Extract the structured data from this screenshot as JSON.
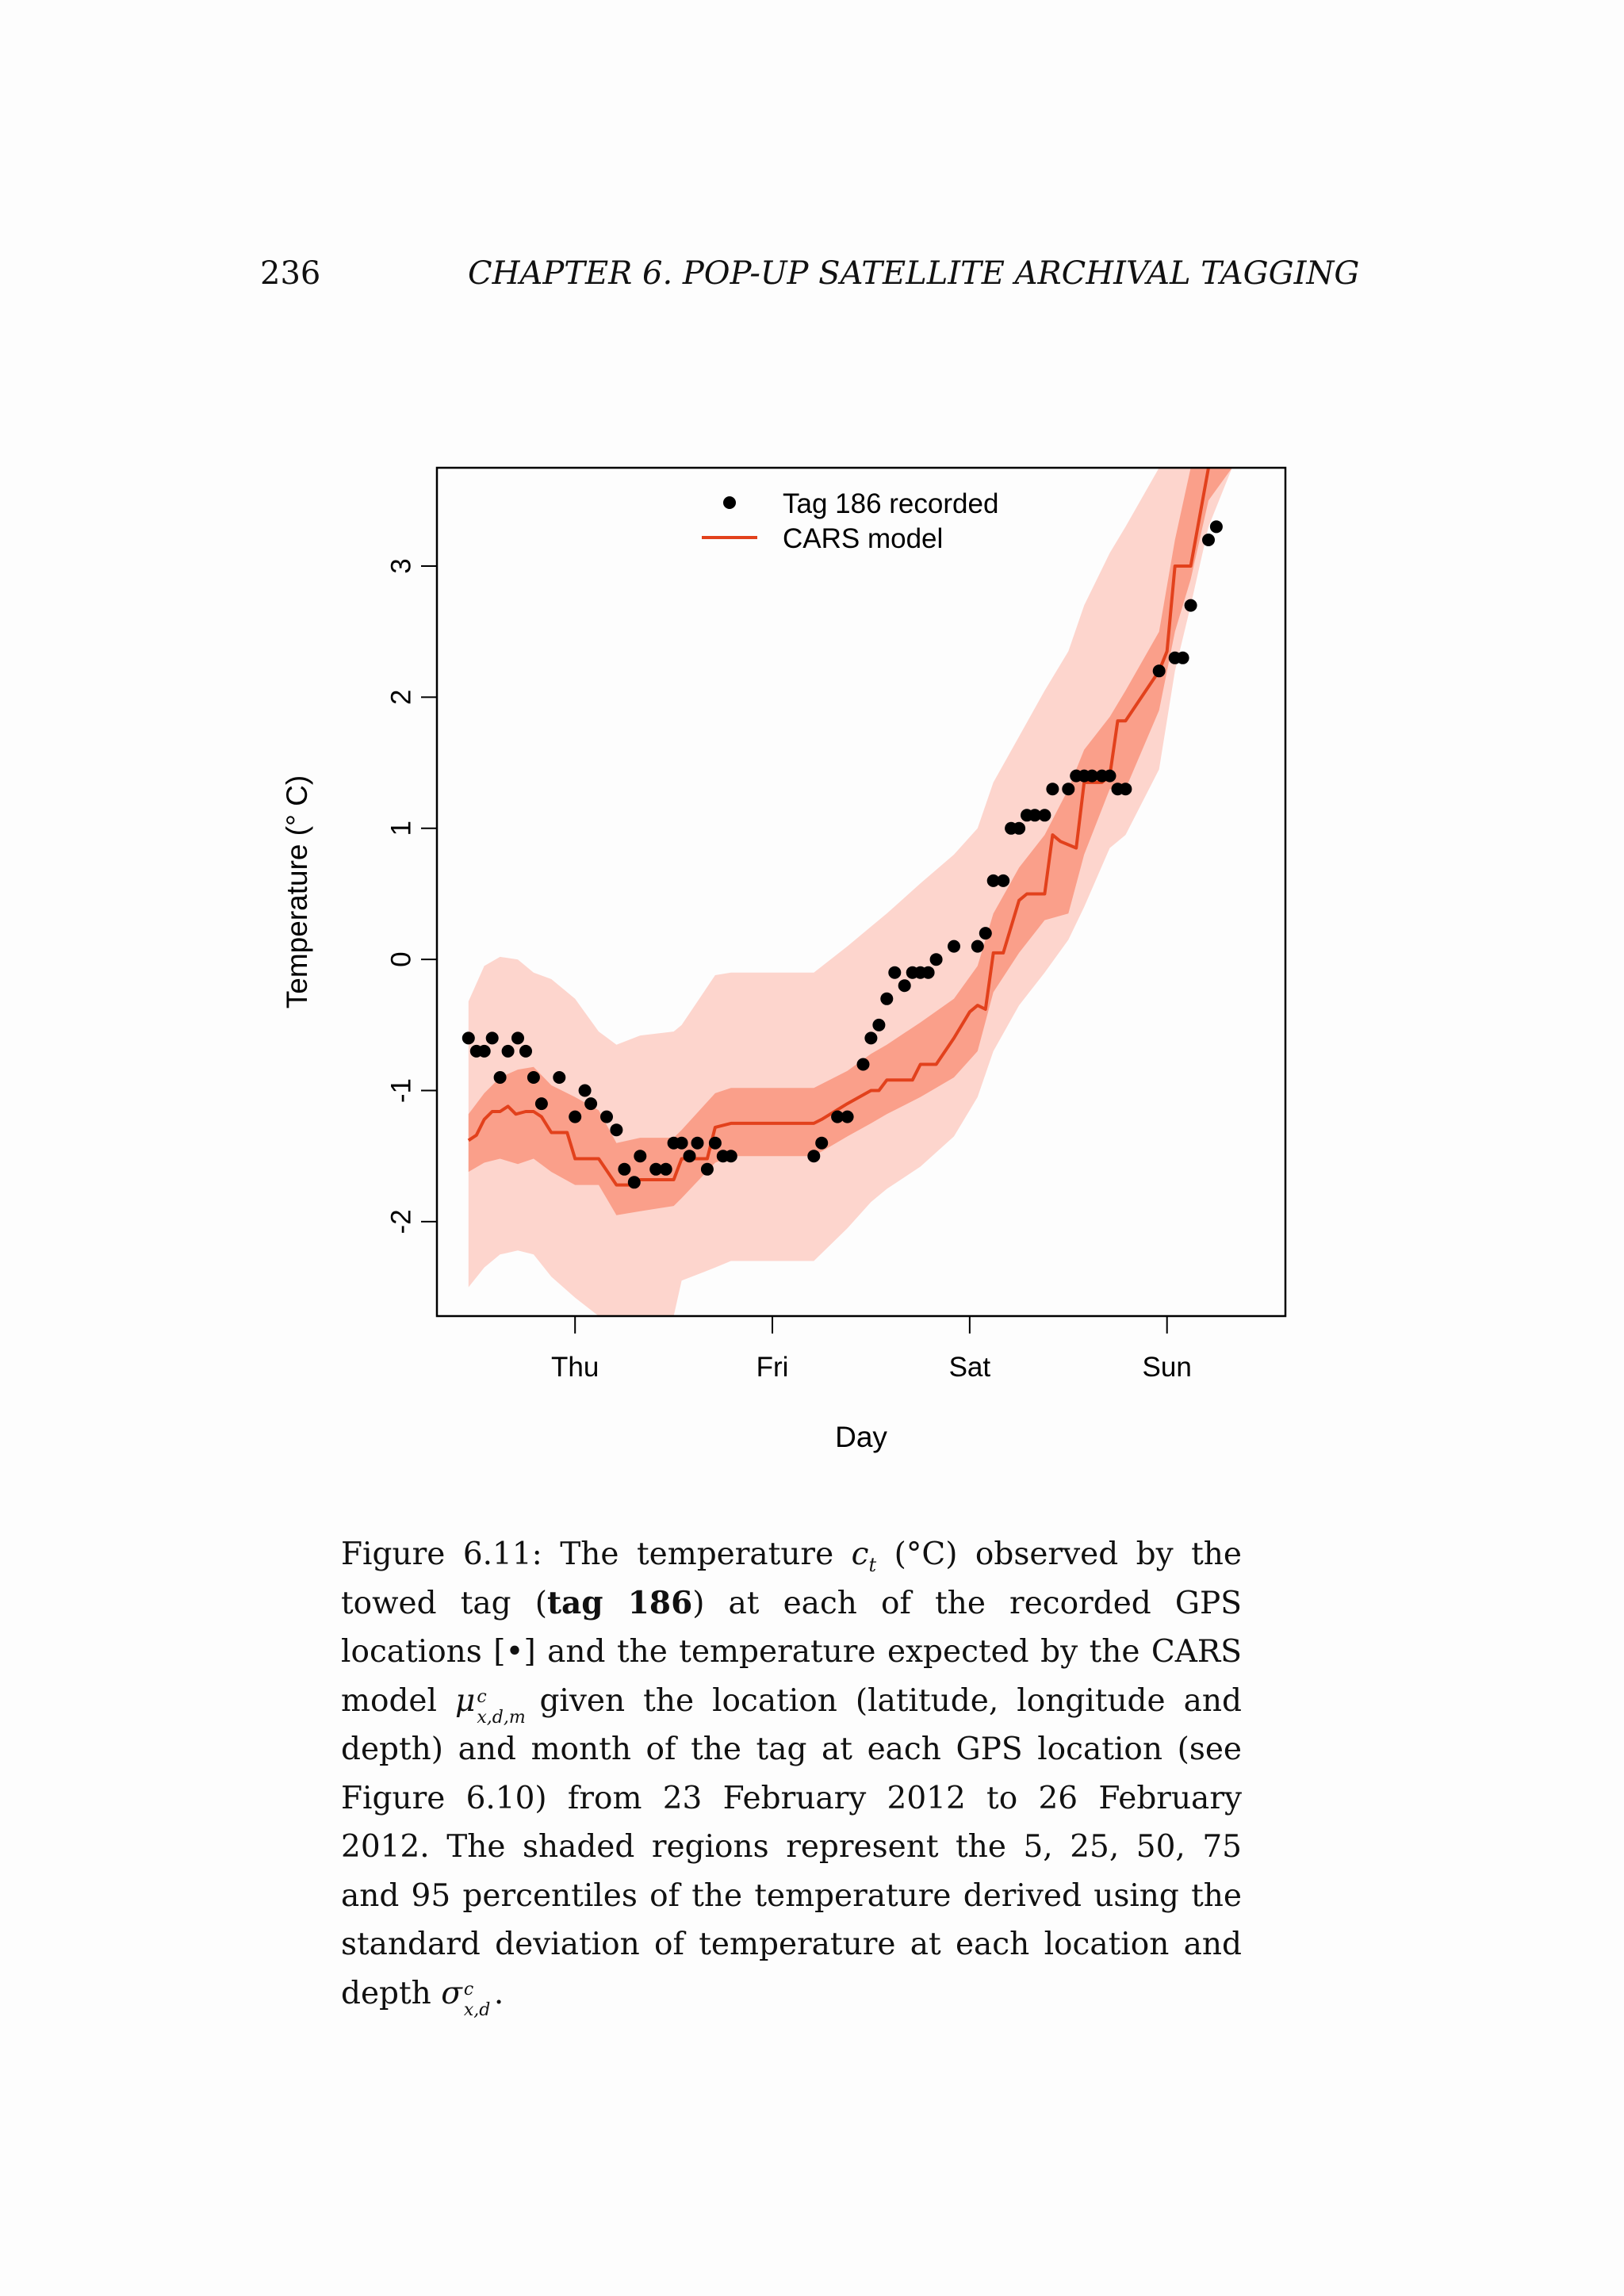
{
  "header": {
    "page_number": "236",
    "running_title": "CHAPTER 6.  POP-UP SATELLITE ARCHIVAL TAGGING"
  },
  "colors": {
    "band_outer": "#fdd5cd",
    "band_inner": "#fa9f8a",
    "model_line": "#e2411c",
    "points": "#000000"
  },
  "chart_data": {
    "type": "line",
    "title": "",
    "xlabel": "Day",
    "ylabel": "Temperature (° C)",
    "x_unit": "days (tick labels at day starts)",
    "xlim": [
      -0.7,
      3.6
    ],
    "ylim": [
      -2.72,
      3.75
    ],
    "x_ticks": [
      {
        "label": "Thu",
        "value": 0
      },
      {
        "label": "Fri",
        "value": 1
      },
      {
        "label": "Sat",
        "value": 2
      },
      {
        "label": "Sun",
        "value": 3
      }
    ],
    "y_ticks": [
      {
        "label": "-2",
        "value": -2
      },
      {
        "label": "-1",
        "value": -1
      },
      {
        "label": "0",
        "value": 0
      },
      {
        "label": "1",
        "value": 1
      },
      {
        "label": "2",
        "value": 2
      },
      {
        "label": "3",
        "value": 3
      }
    ],
    "legend": {
      "position": "top-center",
      "items": [
        {
          "label": "Tag 186 recorded",
          "symbol": "point"
        },
        {
          "label": "CARS model",
          "symbol": "line"
        }
      ]
    },
    "series": [
      {
        "name": "Tag 186 recorded",
        "kind": "scatter",
        "points": [
          [
            -0.54,
            -0.6
          ],
          [
            -0.5,
            -0.7
          ],
          [
            -0.46,
            -0.7
          ],
          [
            -0.42,
            -0.6
          ],
          [
            -0.38,
            -0.9
          ],
          [
            -0.34,
            -0.7
          ],
          [
            -0.29,
            -0.6
          ],
          [
            -0.25,
            -0.7
          ],
          [
            -0.21,
            -0.9
          ],
          [
            -0.17,
            -1.1
          ],
          [
            -0.08,
            -0.9
          ],
          [
            0.0,
            -1.2
          ],
          [
            0.05,
            -1.0
          ],
          [
            0.08,
            -1.1
          ],
          [
            0.16,
            -1.2
          ],
          [
            0.21,
            -1.3
          ],
          [
            0.25,
            -1.6
          ],
          [
            0.3,
            -1.7
          ],
          [
            0.33,
            -1.5
          ],
          [
            0.41,
            -1.6
          ],
          [
            0.46,
            -1.6
          ],
          [
            0.5,
            -1.4
          ],
          [
            0.54,
            -1.4
          ],
          [
            0.58,
            -1.5
          ],
          [
            0.62,
            -1.4
          ],
          [
            0.67,
            -1.6
          ],
          [
            0.71,
            -1.4
          ],
          [
            0.75,
            -1.5
          ],
          [
            0.79,
            -1.5
          ],
          [
            1.21,
            -1.5
          ],
          [
            1.25,
            -1.4
          ],
          [
            1.33,
            -1.2
          ],
          [
            1.38,
            -1.2
          ],
          [
            1.46,
            -0.8
          ],
          [
            1.5,
            -0.6
          ],
          [
            1.54,
            -0.5
          ],
          [
            1.58,
            -0.3
          ],
          [
            1.62,
            -0.1
          ],
          [
            1.67,
            -0.2
          ],
          [
            1.71,
            -0.1
          ],
          [
            1.75,
            -0.1
          ],
          [
            1.79,
            -0.1
          ],
          [
            1.83,
            0.0
          ],
          [
            1.92,
            0.1
          ],
          [
            2.04,
            0.1
          ],
          [
            2.08,
            0.2
          ],
          [
            2.12,
            0.6
          ],
          [
            2.17,
            0.6
          ],
          [
            2.21,
            1.0
          ],
          [
            2.25,
            1.0
          ],
          [
            2.29,
            1.1
          ],
          [
            2.33,
            1.1
          ],
          [
            2.38,
            1.1
          ],
          [
            2.42,
            1.3
          ],
          [
            2.5,
            1.3
          ],
          [
            2.54,
            1.4
          ],
          [
            2.58,
            1.4
          ],
          [
            2.62,
            1.4
          ],
          [
            2.67,
            1.4
          ],
          [
            2.71,
            1.4
          ],
          [
            2.75,
            1.3
          ],
          [
            2.79,
            1.3
          ],
          [
            2.96,
            2.2
          ],
          [
            3.04,
            2.3
          ],
          [
            3.08,
            2.3
          ],
          [
            3.12,
            2.7
          ],
          [
            3.21,
            3.2
          ],
          [
            3.25,
            3.3
          ]
        ]
      },
      {
        "name": "CARS model",
        "kind": "line",
        "points": [
          [
            -0.54,
            -1.38
          ],
          [
            -0.5,
            -1.34
          ],
          [
            -0.46,
            -1.22
          ],
          [
            -0.42,
            -1.16
          ],
          [
            -0.38,
            -1.16
          ],
          [
            -0.34,
            -1.12
          ],
          [
            -0.3,
            -1.18
          ],
          [
            -0.25,
            -1.16
          ],
          [
            -0.21,
            -1.16
          ],
          [
            -0.17,
            -1.2
          ],
          [
            -0.12,
            -1.32
          ],
          [
            -0.04,
            -1.32
          ],
          [
            0.0,
            -1.52
          ],
          [
            0.12,
            -1.52
          ],
          [
            0.21,
            -1.72
          ],
          [
            0.29,
            -1.72
          ],
          [
            0.33,
            -1.68
          ],
          [
            0.5,
            -1.68
          ],
          [
            0.54,
            -1.52
          ],
          [
            0.67,
            -1.52
          ],
          [
            0.71,
            -1.28
          ],
          [
            0.79,
            -1.25
          ],
          [
            1.21,
            -1.25
          ],
          [
            1.25,
            -1.22
          ],
          [
            1.38,
            -1.1
          ],
          [
            1.5,
            -1.0
          ],
          [
            1.54,
            -1.0
          ],
          [
            1.58,
            -0.92
          ],
          [
            1.71,
            -0.92
          ],
          [
            1.75,
            -0.8
          ],
          [
            1.83,
            -0.8
          ],
          [
            1.92,
            -0.6
          ],
          [
            2.0,
            -0.4
          ],
          [
            2.04,
            -0.35
          ],
          [
            2.08,
            -0.38
          ],
          [
            2.12,
            0.05
          ],
          [
            2.17,
            0.05
          ],
          [
            2.25,
            0.45
          ],
          [
            2.29,
            0.5
          ],
          [
            2.38,
            0.5
          ],
          [
            2.42,
            0.95
          ],
          [
            2.46,
            0.9
          ],
          [
            2.54,
            0.85
          ],
          [
            2.58,
            1.35
          ],
          [
            2.67,
            1.35
          ],
          [
            2.71,
            1.4
          ],
          [
            2.75,
            1.82
          ],
          [
            2.79,
            1.82
          ],
          [
            2.96,
            2.2
          ],
          [
            3.0,
            2.35
          ],
          [
            3.04,
            3.0
          ],
          [
            3.12,
            3.0
          ],
          [
            3.21,
            3.75
          ]
        ]
      },
      {
        "name": "25–75 percentile band",
        "kind": "band",
        "x": [
          -0.54,
          -0.46,
          -0.38,
          -0.29,
          -0.21,
          -0.12,
          0.0,
          0.12,
          0.21,
          0.33,
          0.5,
          0.54,
          0.71,
          0.79,
          1.21,
          1.38,
          1.5,
          1.58,
          1.75,
          1.92,
          2.04,
          2.12,
          2.25,
          2.38,
          2.5,
          2.58,
          2.71,
          2.79,
          2.96,
          3.04,
          3.12,
          3.21,
          3.33,
          3.4
        ],
        "lower": [
          -1.62,
          -1.55,
          -1.52,
          -1.56,
          -1.52,
          -1.62,
          -1.72,
          -1.72,
          -1.95,
          -1.92,
          -1.88,
          -1.82,
          -1.55,
          -1.5,
          -1.5,
          -1.35,
          -1.25,
          -1.18,
          -1.05,
          -0.9,
          -0.7,
          -0.25,
          0.05,
          0.3,
          0.35,
          0.8,
          1.3,
          1.3,
          1.9,
          2.5,
          2.9,
          3.5,
          3.75,
          3.75
        ],
        "upper": [
          -1.18,
          -1.02,
          -0.9,
          -0.84,
          -0.82,
          -0.96,
          -1.05,
          -1.15,
          -1.4,
          -1.36,
          -1.36,
          -1.3,
          -1.02,
          -0.98,
          -0.98,
          -0.85,
          -0.72,
          -0.65,
          -0.48,
          -0.3,
          -0.05,
          0.35,
          0.7,
          0.95,
          1.3,
          1.6,
          1.85,
          2.05,
          2.5,
          3.2,
          3.75,
          3.75,
          3.75,
          3.75
        ]
      },
      {
        "name": "5–95 percentile band",
        "kind": "band",
        "x": [
          -0.54,
          -0.46,
          -0.38,
          -0.29,
          -0.21,
          -0.12,
          0.0,
          0.12,
          0.21,
          0.33,
          0.5,
          0.54,
          0.71,
          0.79,
          1.21,
          1.38,
          1.5,
          1.58,
          1.75,
          1.92,
          2.04,
          2.12,
          2.25,
          2.38,
          2.5,
          2.58,
          2.71,
          2.79,
          2.96,
          3.04,
          3.12,
          3.21,
          3.33,
          3.4
        ],
        "lower": [
          -2.5,
          -2.35,
          -2.25,
          -2.22,
          -2.25,
          -2.42,
          -2.58,
          -2.72,
          -2.72,
          -2.72,
          -2.72,
          -2.45,
          -2.35,
          -2.3,
          -2.3,
          -2.05,
          -1.85,
          -1.75,
          -1.58,
          -1.35,
          -1.05,
          -0.7,
          -0.35,
          -0.1,
          0.15,
          0.4,
          0.85,
          0.95,
          1.45,
          2.2,
          2.7,
          3.3,
          3.75,
          3.75
        ],
        "upper": [
          -0.32,
          -0.05,
          0.02,
          0.0,
          -0.1,
          -0.15,
          -0.3,
          -0.55,
          -0.65,
          -0.58,
          -0.55,
          -0.5,
          -0.12,
          -0.1,
          -0.1,
          0.1,
          0.25,
          0.35,
          0.58,
          0.8,
          1.0,
          1.35,
          1.7,
          2.05,
          2.35,
          2.7,
          3.1,
          3.3,
          3.75,
          3.75,
          3.75,
          3.75,
          3.75,
          3.75
        ]
      }
    ]
  },
  "caption": {
    "label": "Figure 6.11:",
    "text_1": "The temperature",
    "var_c": "c",
    "var_c_sub": "t",
    "text_2": "(°C) observed by the towed tag (",
    "tag_bold": "tag 186",
    "text_3": ") at each of the recorded GPS locations [•] and the temperature expected by the CARS model",
    "mu": "μ",
    "mu_sup": "c",
    "mu_sub": "x,d,m",
    "text_4": "given the location (latitude, longitude and depth) and month of the tag at each GPS location (see Figure 6.10) from 23 February 2012 to 26 February 2012.  The shaded regions represent the 5, 25, 50, 75 and 95 percentiles of the temperature derived using the standard deviation of temperature at each location and depth",
    "sigma": "σ",
    "sigma_sup": "c",
    "sigma_sub": "x,d",
    "text_5": "."
  }
}
